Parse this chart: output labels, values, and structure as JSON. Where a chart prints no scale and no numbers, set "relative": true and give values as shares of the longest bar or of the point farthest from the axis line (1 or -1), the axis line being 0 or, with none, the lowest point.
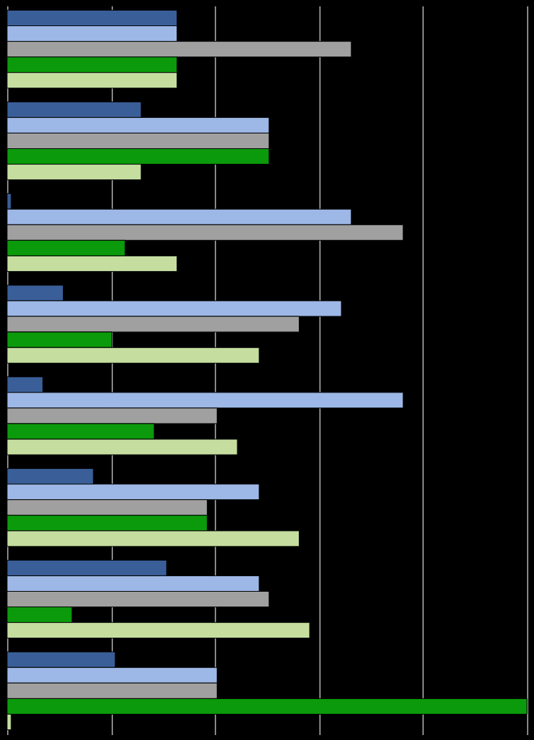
{
  "chart_data": {
    "type": "bar",
    "orientation": "horizontal",
    "relative": true,
    "grid": "x",
    "legend": false,
    "tick_labels": false,
    "categories": [
      null,
      null,
      null,
      null,
      null,
      null,
      null,
      null
    ],
    "series": [
      {
        "color": "#3a5f98",
        "values": [
          0.327,
          0.258,
          0.008,
          0.108,
          0.069,
          0.166,
          0.307,
          0.208
        ]
      },
      {
        "color": "#9db8e6",
        "values": [
          0.327,
          0.504,
          0.662,
          0.643,
          0.762,
          0.485,
          0.485,
          0.404
        ]
      },
      {
        "color": "#a0a0a0",
        "values": [
          0.662,
          0.504,
          0.762,
          0.562,
          0.404,
          0.385,
          0.504,
          0.404
        ]
      },
      {
        "color": "#0b9a0b",
        "values": [
          0.327,
          0.504,
          0.227,
          0.202,
          0.283,
          0.385,
          0.125,
          1
        ]
      },
      {
        "color": "#c5dea0",
        "values": [
          0.327,
          0.258,
          0.327,
          0.485,
          0.443,
          0.562,
          0.582,
          0.008
        ]
      }
    ]
  }
}
